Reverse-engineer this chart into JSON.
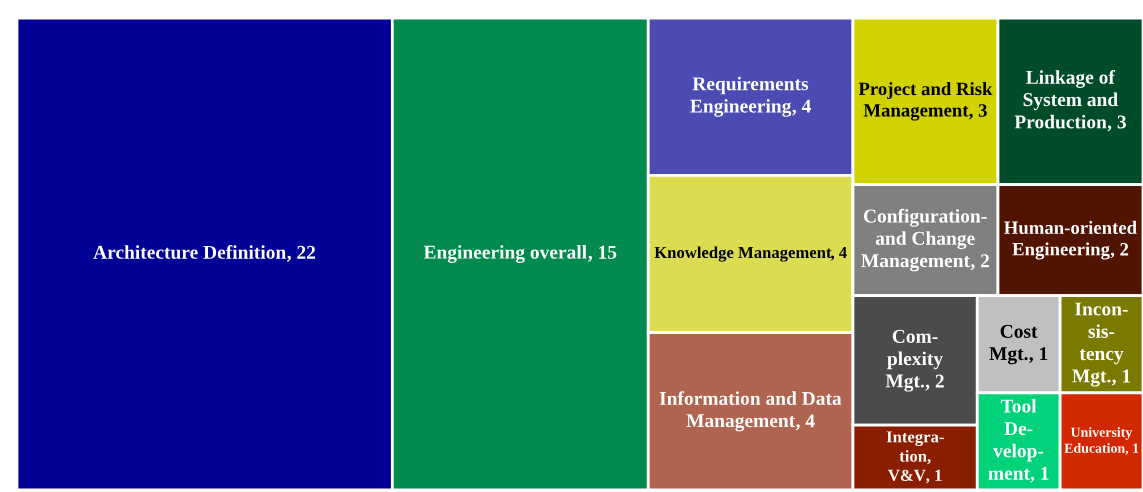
{
  "chart_data": {
    "type": "other",
    "value_labels": [
      ", 22",
      ", 15",
      ", 4",
      ", 4",
      ", 4",
      ", 3",
      ", 3",
      ", 2",
      ", 2",
      ", 2",
      ", 1",
      ", 1",
      ", 1",
      ", 1",
      ", 1"
    ],
    "categories": [
      "Architecture Definition",
      "Engineering overall",
      "Requirements\nEngineering",
      "Knowledge Management",
      "Information and Data\nManagement",
      "Project and Risk\nManagement",
      "Linkage of\nSystem and\nProduction",
      "Configuration-\nand Change\nManagement",
      "Human-oriented\nEngineering",
      "Com-\nplexity\nMgt.",
      "Integra-\ntion,\nV&V",
      "Cost\nMgt.",
      "Incon-\nsis-\ntency\nMgt.",
      "Tool\nDe-\nvelop-\nment",
      "University\nEducation"
    ],
    "values": [
      22,
      15,
      4,
      4,
      4,
      3,
      3,
      2,
      2,
      2,
      1,
      1,
      1,
      1,
      1
    ],
    "colors": [
      "#000096",
      "#008a4d",
      "#4b4bb4",
      "#dcdc50",
      "#b06450",
      "#d2d200",
      "#004b2a",
      "#808080",
      "#501400",
      "#4b4b4b",
      "#8c1e00",
      "#c0c0c0",
      "#7a7a00",
      "#00d27a",
      "#d22800"
    ]
  }
}
